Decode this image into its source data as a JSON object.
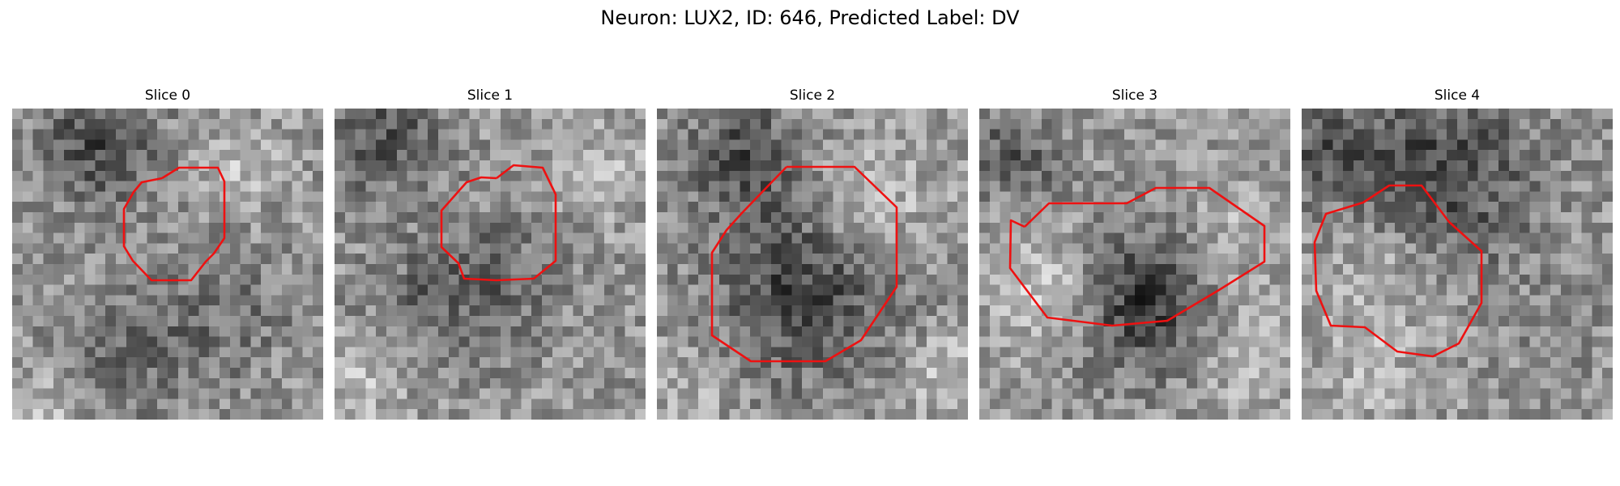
{
  "figure": {
    "suptitle": "Neuron: LUX2, ID: 646, Predicted Label: DV"
  },
  "panels": [
    {
      "title": "Slice 0"
    },
    {
      "title": "Slice 1"
    },
    {
      "title": "Slice 2"
    },
    {
      "title": "Slice 3"
    },
    {
      "title": "Slice 4"
    }
  ],
  "colors": {
    "contour": "#ee1111",
    "colormap": "gray"
  }
}
